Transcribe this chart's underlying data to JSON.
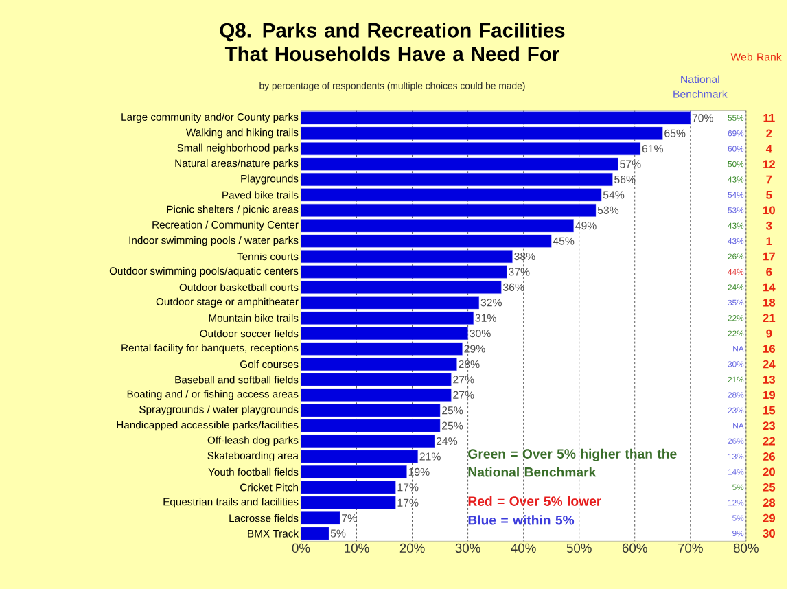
{
  "chart_data": [
    {
      "type": "bar",
      "orientation": "horizontal",
      "title": "Q8. Parks and Recreation Facilities That Households Have a Need For",
      "subtitle": "by percentage of respondents (multiple choices could be made)",
      "categories": [
        "Large community and/or County parks",
        "Walking and hiking trails",
        "Small neighborhood parks",
        "Natural areas/nature parks",
        "Playgrounds",
        "Paved bike trails",
        "Picnic shelters / picnic areas",
        "Recreation / Community Center",
        "Indoor swimming pools / water parks",
        "Tennis courts",
        "Outdoor swimming pools/aquatic centers",
        "Outdoor basketball courts",
        "Outdoor stage or amphitheater",
        "Mountain bike trails",
        "Outdoor soccer fields",
        "Rental facility for banquets, receptions",
        "Golf courses",
        "Baseball and softball fields",
        "Boating and / or fishing access areas",
        "Spraygrounds / water playgrounds",
        "Handicapped accessible parks/facilities",
        "Off-leash dog parks",
        "Skateboarding area",
        "Youth football fields",
        "Cricket Pitch",
        "Equestrian trails and facilities",
        "Lacrosse fields",
        "BMX Track"
      ],
      "values": [
        70,
        65,
        61,
        57,
        56,
        54,
        53,
        49,
        45,
        38,
        37,
        36,
        32,
        31,
        30,
        29,
        28,
        27,
        27,
        25,
        25,
        24,
        21,
        19,
        17,
        17,
        7,
        5
      ],
      "value_labels": [
        "70%",
        "65%",
        "61%",
        "57%",
        "56%",
        "54%",
        "53%",
        "49%",
        "45%",
        "38%",
        "37%",
        "36%",
        "32%",
        "31%",
        "30%",
        "29%",
        "28%",
        "27%",
        "27%",
        "25%",
        "25%",
        "24%",
        "21%",
        "19%",
        "17%",
        "17%",
        "7%",
        "5%"
      ],
      "color": "#0000e0",
      "xlim": [
        0,
        80
      ],
      "xticks": [
        {
          "value": 0,
          "label": "0%"
        },
        {
          "value": 10,
          "label": "10%"
        },
        {
          "value": 20,
          "label": "20%"
        },
        {
          "value": 30,
          "label": "30%"
        },
        {
          "value": 40,
          "label": "40%"
        },
        {
          "value": 50,
          "label": "50%"
        },
        {
          "value": 60,
          "label": "60%"
        },
        {
          "value": 70,
          "label": "70%"
        },
        {
          "value": 80,
          "label": "80%"
        }
      ],
      "grid": "x",
      "annotations": [
        "Green = Over 5% higher than the National Benchmark",
        "Red = Over 5% lower",
        "Blue = within 5%"
      ]
    },
    {
      "type": "other",
      "title": "National Benchmark",
      "categories": [
        "55%",
        "69%",
        "60%",
        "50%",
        "43%",
        "54%",
        "53%",
        "43%",
        "43%",
        "26%",
        "44%",
        "24%",
        "35%",
        "22%",
        "22%",
        "NA",
        "30%",
        "21%",
        "28%",
        "23%",
        "NA",
        "26%",
        "13%",
        "14%",
        "5%",
        "12%",
        "5%",
        "9%"
      ],
      "colors": [
        "#3a8a2a",
        "#6060e0",
        "#6060e0",
        "#3a8a2a",
        "#3a8a2a",
        "#6060e0",
        "#6060e0",
        "#3a8a2a",
        "#6060e0",
        "#3a8a2a",
        "#e03030",
        "#3a8a2a",
        "#6060e0",
        "#3a8a2a",
        "#3a8a2a",
        "#6060e0",
        "#6060e0",
        "#3a8a2a",
        "#6060e0",
        "#6060e0",
        "#6060e0",
        "#6060e0",
        "#6060e0",
        "#6060e0",
        "#3a8a2a",
        "#6060e0",
        "#6060e0",
        "#6060e0"
      ]
    },
    {
      "type": "other",
      "title": "Web Rank",
      "categories": [
        "11",
        "2",
        "4",
        "12",
        "7",
        "5",
        "10",
        "3",
        "1",
        "17",
        "6",
        "14",
        "18",
        "21",
        "9",
        "16",
        "24",
        "13",
        "19",
        "15",
        "23",
        "22",
        "26",
        "20",
        "25",
        "28",
        "29",
        "30"
      ],
      "color": "#e82810"
    }
  ]
}
